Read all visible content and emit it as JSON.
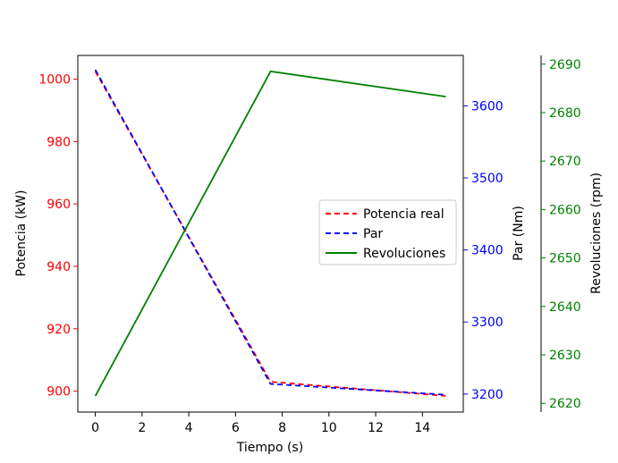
{
  "chart_data": {
    "type": "line",
    "x": [
      0,
      7.5,
      15
    ],
    "xlabel": "Tiempo (s)",
    "xlim": [
      -0.75,
      15.75
    ],
    "xticks": [
      0,
      2,
      4,
      6,
      8,
      10,
      12,
      14
    ],
    "axes": [
      {
        "id": "left",
        "label": "Potencia (kW)",
        "color": "#ff0000",
        "lim": [
          893.3,
          1007.6
        ],
        "ticks": [
          900,
          920,
          940,
          960,
          980,
          1000
        ]
      },
      {
        "id": "right1",
        "label": "Par (Nm)",
        "color": "#0000ff",
        "lim": [
          3175,
          3670
        ],
        "ticks": [
          3200,
          3300,
          3400,
          3500,
          3600
        ]
      },
      {
        "id": "right2",
        "label": "Revoluciones (rpm)",
        "color": "#008000",
        "lim": [
          2618.2,
          2691.8
        ],
        "ticks": [
          2620,
          2630,
          2640,
          2650,
          2660,
          2670,
          2680,
          2690
        ]
      }
    ],
    "series": [
      {
        "name": "Potencia real",
        "axis": "left",
        "color": "#ff0000",
        "dash": true,
        "values": [
          1002.5,
          903.0,
          898.5
        ]
      },
      {
        "name": "Par",
        "axis": "right1",
        "color": "#0000ff",
        "dash": true,
        "values": [
          3650,
          3214,
          3199
        ]
      },
      {
        "name": "Revoluciones",
        "axis": "right2",
        "color": "#008000",
        "dash": false,
        "values": [
          2621.5,
          2688.5,
          2683.3
        ]
      }
    ],
    "legend": "center-right"
  }
}
